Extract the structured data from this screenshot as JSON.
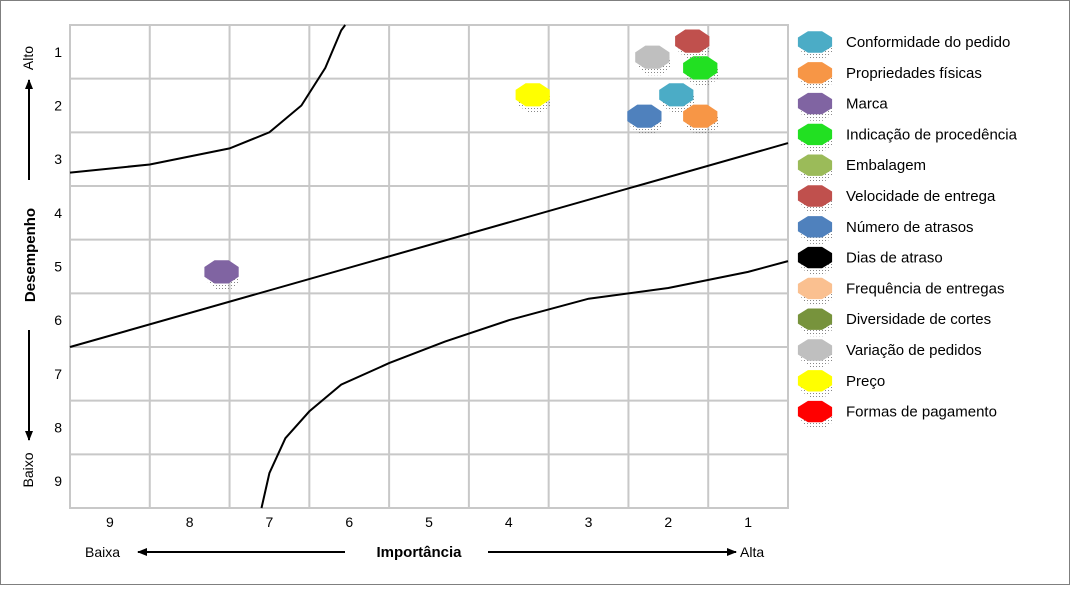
{
  "chart_data": {
    "type": "scatter",
    "title": "",
    "xlabel": "Importância",
    "ylabel": "Desempenho",
    "x_low_label": "Baixa",
    "x_high_label": "Alta",
    "y_top_label": "Alto",
    "y_bottom_label": "Baixo",
    "x_ticks": [
      "9",
      "8",
      "7",
      "6",
      "5",
      "4",
      "3",
      "2",
      "1"
    ],
    "y_ticks": [
      "1",
      "2",
      "3",
      "4",
      "5",
      "6",
      "7",
      "8",
      "9"
    ],
    "xlim": [
      9.5,
      0.5
    ],
    "ylim": [
      0.5,
      9.5
    ],
    "grid": true,
    "legend_position": "right",
    "series": [
      {
        "name": "Conformidade do pedido",
        "color": "#4BACC6",
        "x": 1.9,
        "y": 1.8
      },
      {
        "name": "Propriedades físicas",
        "color": "#F79646",
        "x": 1.6,
        "y": 2.2
      },
      {
        "name": "Marca",
        "color": "#8064A2",
        "x": 7.6,
        "y": 5.1
      },
      {
        "name": "Indicação de procedência",
        "color": "#22E022",
        "x": 1.6,
        "y": 1.3
      },
      {
        "name": "Embalagem",
        "color": "#9BBB59",
        "x": null,
        "y": null
      },
      {
        "name": "Velocidade de entrega",
        "color": "#C0504D",
        "x": 1.7,
        "y": 0.8
      },
      {
        "name": "Número de atrasos",
        "color": "#4F81BD",
        "x": 2.3,
        "y": 2.2
      },
      {
        "name": "Dias de atraso",
        "color": "#000000",
        "x": null,
        "y": null
      },
      {
        "name": "Frequência de entregas",
        "color": "#FAC090",
        "x": null,
        "y": null
      },
      {
        "name": "Diversidade de cortes",
        "color": "#77933C",
        "x": null,
        "y": null
      },
      {
        "name": "Variação de pedidos",
        "color": "#BFBFBF",
        "x": 2.2,
        "y": 1.1
      },
      {
        "name": "Preço",
        "color": "#FFFF00",
        "x": 3.7,
        "y": 1.8
      },
      {
        "name": "Formas de pagamento",
        "color": "#FF0000",
        "x": null,
        "y": null
      }
    ],
    "curves": [
      {
        "name": "",
        "points": [
          [
            9.5,
            3.25
          ],
          [
            8.5,
            3.1
          ],
          [
            7.5,
            2.8
          ],
          [
            7.0,
            2.5
          ],
          [
            6.6,
            2.0
          ],
          [
            6.3,
            1.3
          ],
          [
            6.1,
            0.6
          ],
          [
            6.05,
            0.5
          ]
        ]
      },
      {
        "name": "",
        "points": [
          [
            9.5,
            6.5
          ],
          [
            0.5,
            2.7
          ]
        ]
      },
      {
        "name": "",
        "points": [
          [
            7.1,
            9.5
          ],
          [
            7.0,
            8.85
          ],
          [
            6.8,
            8.2
          ],
          [
            6.5,
            7.7
          ],
          [
            6.1,
            7.2
          ],
          [
            5.5,
            6.8
          ],
          [
            4.8,
            6.4
          ],
          [
            4.0,
            6.0
          ],
          [
            3.0,
            5.6
          ],
          [
            2.0,
            5.4
          ],
          [
            1.0,
            5.1
          ],
          [
            0.5,
            4.9
          ]
        ]
      }
    ]
  }
}
